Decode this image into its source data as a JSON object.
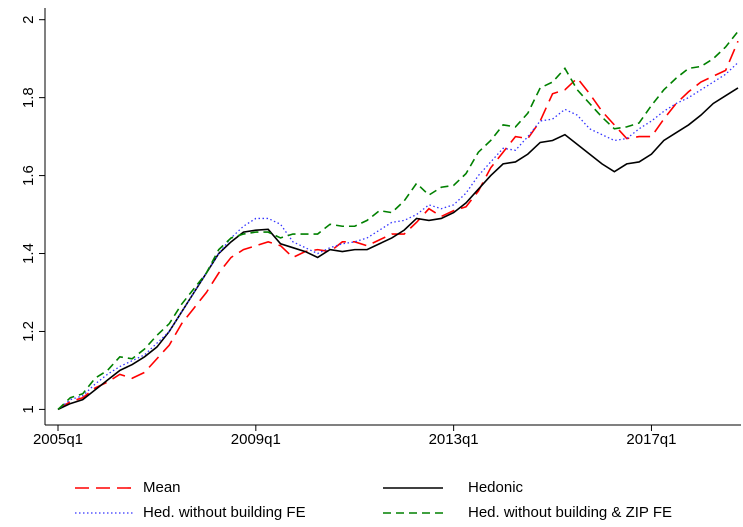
{
  "chart_data": {
    "type": "line",
    "categories": [
      "2005q1",
      null,
      null,
      null,
      null,
      null,
      null,
      null,
      null,
      null,
      null,
      null,
      null,
      null,
      null,
      null,
      "2009q1",
      null,
      null,
      null,
      null,
      null,
      null,
      null,
      null,
      null,
      null,
      null,
      null,
      null,
      null,
      null,
      "2013q1",
      null,
      null,
      null,
      null,
      null,
      null,
      null,
      null,
      null,
      null,
      null,
      null,
      null,
      null,
      null,
      "2017q1",
      null,
      null,
      null,
      null,
      null,
      null,
      null
    ],
    "ylim": [
      0.96,
      2.03
    ],
    "yticks": [
      1,
      1.2,
      1.4,
      1.6,
      1.8,
      2
    ],
    "grid": false,
    "legend": "bottom",
    "series": [
      {
        "name": "Mean",
        "color": "#ff0000",
        "linestyle": "longdash",
        "values": [
          1.0,
          1.02,
          1.03,
          1.055,
          1.07,
          1.09,
          1.08,
          1.095,
          1.13,
          1.165,
          1.22,
          1.26,
          1.3,
          1.35,
          1.39,
          1.41,
          1.42,
          1.43,
          1.42,
          1.39,
          1.405,
          1.41,
          1.405,
          1.43,
          1.43,
          1.42,
          1.435,
          1.45,
          1.45,
          1.48,
          1.515,
          1.495,
          1.51,
          1.52,
          1.56,
          1.62,
          1.66,
          1.7,
          1.695,
          1.74,
          1.81,
          1.82,
          1.85,
          1.81,
          1.765,
          1.73,
          1.695,
          1.7,
          1.7,
          1.745,
          1.785,
          1.815,
          1.84,
          1.855,
          1.87,
          1.945
        ]
      },
      {
        "name": "Hedonic",
        "color": "#000000",
        "linestyle": "solid",
        "values": [
          1.0,
          1.015,
          1.025,
          1.05,
          1.075,
          1.1,
          1.115,
          1.135,
          1.16,
          1.2,
          1.25,
          1.3,
          1.35,
          1.4,
          1.43,
          1.455,
          1.46,
          1.462,
          1.425,
          1.415,
          1.405,
          1.39,
          1.41,
          1.405,
          1.41,
          1.41,
          1.425,
          1.44,
          1.46,
          1.49,
          1.485,
          1.49,
          1.505,
          1.53,
          1.565,
          1.6,
          1.63,
          1.635,
          1.655,
          1.685,
          1.69,
          1.705,
          1.68,
          1.655,
          1.63,
          1.61,
          1.63,
          1.635,
          1.655,
          1.69,
          1.71,
          1.73,
          1.755,
          1.785,
          1.805,
          1.825
        ]
      },
      {
        "name": "Hed. without building FE",
        "color": "#3333ff",
        "linestyle": "dot",
        "values": [
          1.0,
          1.025,
          1.035,
          1.065,
          1.09,
          1.11,
          1.125,
          1.14,
          1.17,
          1.2,
          1.25,
          1.3,
          1.35,
          1.4,
          1.44,
          1.47,
          1.49,
          1.49,
          1.475,
          1.43,
          1.415,
          1.4,
          1.415,
          1.425,
          1.43,
          1.44,
          1.46,
          1.48,
          1.485,
          1.5,
          1.525,
          1.515,
          1.525,
          1.555,
          1.6,
          1.635,
          1.67,
          1.665,
          1.7,
          1.74,
          1.745,
          1.77,
          1.755,
          1.72,
          1.705,
          1.69,
          1.695,
          1.72,
          1.74,
          1.765,
          1.785,
          1.8,
          1.82,
          1.84,
          1.86,
          1.89
        ]
      },
      {
        "name": "Hed. without building & ZIP FE",
        "color": "#008000",
        "linestyle": "dash",
        "values": [
          1.0,
          1.03,
          1.04,
          1.08,
          1.1,
          1.135,
          1.13,
          1.155,
          1.19,
          1.22,
          1.27,
          1.31,
          1.35,
          1.41,
          1.44,
          1.45,
          1.455,
          1.455,
          1.44,
          1.45,
          1.45,
          1.45,
          1.475,
          1.47,
          1.47,
          1.485,
          1.51,
          1.505,
          1.535,
          1.58,
          1.55,
          1.57,
          1.575,
          1.605,
          1.66,
          1.69,
          1.73,
          1.725,
          1.76,
          1.825,
          1.84,
          1.875,
          1.82,
          1.785,
          1.75,
          1.72,
          1.725,
          1.735,
          1.78,
          1.82,
          1.85,
          1.875,
          1.88,
          1.9,
          1.93,
          1.97
        ]
      }
    ]
  }
}
